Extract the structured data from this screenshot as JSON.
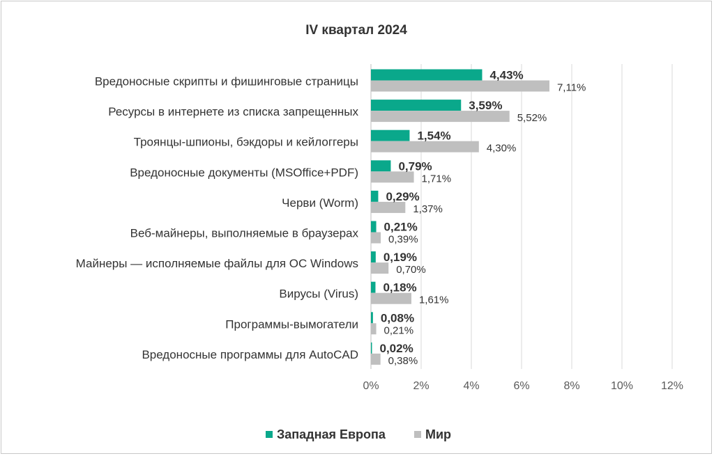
{
  "chart_data": {
    "type": "bar",
    "orientation": "horizontal",
    "title": "IV квартал 2024",
    "categories": [
      "Вредоносные скрипты и фишинговые страницы",
      "Ресурсы в интернете из списка запрещенных",
      "Троянцы-шпионы, бэкдоры и кейлоггеры",
      "Вредоносные документы (MSOffice+PDF)",
      "Черви (Worm)",
      "Веб-майнеры, выполняемые в браузерах",
      "Майнеры — исполняемые файлы для ОС Windows",
      "Вирусы (Virus)",
      "Программы-вымогатели",
      "Вредоносные программы для AutoCAD"
    ],
    "series": [
      {
        "name": "Западная Европа",
        "color": "#0aa88b",
        "values": [
          4.43,
          3.59,
          1.54,
          0.79,
          0.29,
          0.21,
          0.19,
          0.18,
          0.08,
          0.02
        ],
        "labels": [
          "4,43%",
          "3,59%",
          "1,54%",
          "0,79%",
          "0,29%",
          "0,21%",
          "0,19%",
          "0,18%",
          "0,08%",
          "0,02%"
        ]
      },
      {
        "name": "Мир",
        "color": "#bfbfbf",
        "values": [
          7.11,
          5.52,
          4.3,
          1.71,
          1.37,
          0.39,
          0.7,
          1.61,
          0.21,
          0.38
        ],
        "labels": [
          "7,11%",
          "5,52%",
          "4,30%",
          "1,71%",
          "1,37%",
          "0,39%",
          "0,70%",
          "1,61%",
          "0,21%",
          "0,38%"
        ]
      }
    ],
    "xlim": [
      0,
      12
    ],
    "xticks": [
      "0%",
      "2%",
      "4%",
      "6%",
      "8%",
      "10%",
      "12%"
    ],
    "grid": true,
    "legend": "bottom"
  }
}
